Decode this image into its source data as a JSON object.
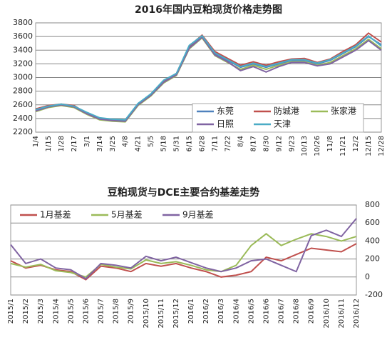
{
  "chart_data": [
    {
      "type": "line",
      "title": "2016年国内豆粕现货价格走势图",
      "categories": [
        "1/4",
        "1/15",
        "1/28",
        "2/17",
        "3/1",
        "3/14",
        "3/25",
        "4/8",
        "4/21",
        "5/5",
        "5/18",
        "5/31",
        "6/15",
        "6/28",
        "7/11",
        "7/22",
        "8/4",
        "8/17",
        "8/30",
        "9/12",
        "9/23",
        "10/13",
        "10/26",
        "11/8",
        "11/21",
        "12/2",
        "12/15",
        "12/28"
      ],
      "series": [
        {
          "name": "东莞",
          "color": "#4f81bd",
          "values": [
            2520,
            2580,
            2600,
            2580,
            2480,
            2400,
            2380,
            2370,
            2620,
            2750,
            2950,
            3050,
            3450,
            3600,
            3350,
            3250,
            3150,
            3200,
            3150,
            3200,
            3250,
            3250,
            3200,
            3250,
            3350,
            3450,
            3600,
            3480
          ]
        },
        {
          "name": "防城港",
          "color": "#c0504d",
          "values": [
            2540,
            2590,
            2610,
            2590,
            2470,
            2390,
            2370,
            2360,
            2600,
            2740,
            2940,
            3060,
            3460,
            3620,
            3380,
            3280,
            3180,
            3230,
            3180,
            3230,
            3270,
            3280,
            3220,
            3270,
            3380,
            3480,
            3650,
            3520
          ]
        },
        {
          "name": "张家港",
          "color": "#9bbb59",
          "values": [
            2500,
            2560,
            2590,
            2560,
            2460,
            2380,
            2360,
            2350,
            2590,
            2730,
            2920,
            3030,
            3420,
            3580,
            3320,
            3220,
            3120,
            3180,
            3120,
            3180,
            3230,
            3230,
            3180,
            3220,
            3320,
            3420,
            3560,
            3420
          ]
        },
        {
          "name": "日照",
          "color": "#8064a2",
          "values": [
            2510,
            2570,
            2600,
            2570,
            2470,
            2390,
            2370,
            2360,
            2600,
            2740,
            2930,
            3040,
            3430,
            3590,
            3330,
            3230,
            3100,
            3160,
            3080,
            3160,
            3220,
            3220,
            3170,
            3200,
            3300,
            3400,
            3540,
            3400
          ]
        },
        {
          "name": "天津",
          "color": "#4bacc6",
          "values": [
            2530,
            2580,
            2610,
            2580,
            2490,
            2410,
            2390,
            2380,
            2620,
            2760,
            2960,
            3060,
            3470,
            3610,
            3360,
            3260,
            3160,
            3210,
            3160,
            3210,
            3260,
            3260,
            3210,
            3260,
            3360,
            3460,
            3610,
            3460
          ]
        }
      ],
      "ylim": [
        2200,
        3800
      ],
      "yticks": [
        2200,
        2400,
        2600,
        2800,
        3000,
        3200,
        3400,
        3600,
        3800
      ],
      "grid": true,
      "yaxis_side": "left",
      "legend": "lower right"
    },
    {
      "type": "line",
      "title": "豆粕现货与DCE主要合约基差走势",
      "categories": [
        "2015/1",
        "2015/2",
        "2015/3",
        "2015/4",
        "2015/5",
        "2015/6",
        "2015/7",
        "2015/8",
        "2015/9",
        "2015/10",
        "2015/11",
        "2015/12",
        "2016/1",
        "2016/2",
        "2016/3",
        "2016/4",
        "2016/5",
        "2016/6",
        "2016/7",
        "2016/8",
        "2016/9",
        "2016/10",
        "2016/11",
        "2016/12"
      ],
      "series": [
        {
          "name": "1月基差",
          "color": "#c0504d",
          "values": [
            180,
            100,
            130,
            80,
            60,
            -30,
            120,
            100,
            60,
            150,
            120,
            150,
            100,
            60,
            0,
            20,
            60,
            220,
            180,
            250,
            320,
            300,
            280,
            370
          ]
        },
        {
          "name": "5月基差",
          "color": "#9bbb59",
          "values": [
            150,
            110,
            140,
            70,
            50,
            0,
            140,
            110,
            90,
            190,
            150,
            170,
            130,
            80,
            60,
            130,
            350,
            480,
            350,
            420,
            480,
            450,
            400,
            450
          ]
        },
        {
          "name": "9月基差",
          "color": "#8064a2",
          "values": [
            360,
            150,
            200,
            100,
            80,
            -20,
            150,
            130,
            100,
            230,
            180,
            220,
            160,
            100,
            60,
            100,
            180,
            200,
            130,
            60,
            460,
            520,
            450,
            650
          ]
        }
      ],
      "ylim": [
        -200,
        800
      ],
      "yticks": [
        -200,
        0,
        200,
        400,
        600,
        800
      ],
      "grid": true,
      "yaxis_side": "right",
      "legend": "upper left"
    }
  ]
}
